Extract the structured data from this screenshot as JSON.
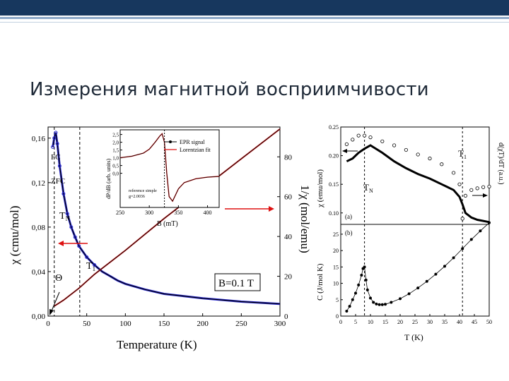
{
  "slide": {
    "title": "Измерения магнитной восприимчивости",
    "colors": {
      "header_bar": "#17375e",
      "accent_line": "#8ea9c8"
    }
  },
  "chart_data": [
    {
      "type": "line",
      "panel": "left-main",
      "xlabel": "Temperature (K)",
      "ylabel": "χ (cmu/mol)",
      "y2label": "1/χ (mol/emu)",
      "xlim": [
        0,
        300
      ],
      "ylim": [
        0,
        0.17
      ],
      "y2lim": [
        0,
        95
      ],
      "xticks": [
        "0",
        "50",
        "100",
        "150",
        "200",
        "250",
        "300"
      ],
      "yticks": [
        "0,00",
        "0,04",
        "0,08",
        "0,12",
        "0,16"
      ],
      "y2ticks": [
        "0",
        "20",
        "40",
        "60",
        "80"
      ],
      "annotations": [
        "FC",
        "ZFC",
        "T_N",
        "T_1",
        "Θ",
        "B=0.1 T"
      ],
      "field_label": "B=0.1 T",
      "label_FC": "FC",
      "label_ZFC": "ZFC",
      "label_TN": "T",
      "label_TN_sub": "N",
      "label_T1": "T",
      "label_T1_sub": "1",
      "label_theta": "Θ",
      "chi_series": {
        "x": [
          6,
          8,
          10,
          12,
          15,
          20,
          25,
          30,
          35,
          40,
          50,
          60,
          70,
          80,
          90,
          100,
          125,
          150,
          175,
          200,
          250,
          300
        ],
        "y": [
          0.152,
          0.16,
          0.165,
          0.155,
          0.135,
          0.11,
          0.092,
          0.08,
          0.071,
          0.063,
          0.053,
          0.046,
          0.04,
          0.036,
          0.032,
          0.029,
          0.024,
          0.02,
          0.018,
          0.016,
          0.013,
          0.011
        ]
      },
      "inv_chi_series": {
        "x": [
          8,
          20,
          40,
          60,
          80,
          100,
          150,
          200,
          250,
          300
        ],
        "y": [
          5,
          8,
          14,
          21,
          27,
          33,
          49,
          64,
          79,
          94
        ]
      },
      "guides_x": [
        8,
        41
      ]
    },
    {
      "type": "line",
      "panel": "left-inset",
      "legend": [
        "EPR signal",
        "Lorentzian fit"
      ],
      "xlabel": "B (mT)",
      "ylabel": "dP/dB (arb. units)",
      "xlim": [
        250,
        420
      ],
      "ylim": [
        -2.2,
        2.8
      ],
      "xticks": [
        "250",
        "300",
        "350",
        "400"
      ],
      "yticks": [
        "0,0",
        "0,5",
        "1,0",
        "1,5",
        "2,0",
        "2,5"
      ],
      "note_line1": "reference simple",
      "note_line2": "g=2.0036",
      "x": [
        250,
        270,
        290,
        300,
        310,
        318,
        322,
        326,
        330,
        334,
        340,
        350,
        360,
        380,
        400,
        420
      ],
      "y": [
        1.0,
        1.1,
        1.3,
        1.55,
        2.0,
        2.4,
        2.55,
        2.0,
        0.0,
        -1.5,
        -1.8,
        -1.0,
        -0.6,
        -0.35,
        -0.25,
        -0.2
      ]
    },
    {
      "type": "scatter",
      "panel": "right-a",
      "panel_label": "(a)",
      "ylabel": "χ (emu/mol)",
      "y2label": "d(χT)/dT (a.u.)",
      "xlim": [
        0,
        50
      ],
      "ylim": [
        0.08,
        0.25
      ],
      "yticks": [
        "0.10",
        "0.15",
        "0.20",
        "0.25"
      ],
      "label_T1": "T",
      "label_T1_sub": "1",
      "label_TN": "T",
      "label_TN_sub": "N",
      "chi_x": [
        2,
        4,
        6,
        8,
        10,
        14,
        18,
        22,
        26,
        30,
        34,
        38,
        40,
        41,
        42,
        44,
        46,
        48,
        50
      ],
      "chi_y": [
        0.19,
        0.195,
        0.205,
        0.212,
        0.218,
        0.205,
        0.19,
        0.178,
        0.168,
        0.16,
        0.15,
        0.14,
        0.128,
        0.115,
        0.1,
        0.092,
        0.088,
        0.086,
        0.084
      ],
      "deriv_x": [
        2,
        4,
        6,
        8,
        10,
        14,
        18,
        22,
        26,
        30,
        34,
        38,
        40,
        41,
        42,
        44,
        46,
        48,
        50
      ],
      "deriv_y": [
        0.22,
        0.228,
        0.235,
        0.235,
        0.232,
        0.225,
        0.218,
        0.21,
        0.202,
        0.195,
        0.185,
        0.17,
        0.15,
        0.09,
        0.13,
        0.14,
        0.143,
        0.145,
        0.146
      ],
      "guides_x": [
        8,
        41
      ]
    },
    {
      "type": "scatter",
      "panel": "right-b",
      "panel_label": "(b)",
      "xlabel": "T (K)",
      "ylabel": "C (J/mol K)",
      "xlim": [
        0,
        50
      ],
      "ylim": [
        0,
        28
      ],
      "xticks": [
        "0",
        "5",
        "10",
        "15",
        "20",
        "25",
        "30",
        "35",
        "40",
        "45",
        "50"
      ],
      "yticks": [
        "0",
        "5",
        "10",
        "15",
        "20",
        "25"
      ],
      "x": [
        2,
        3,
        4,
        5,
        6,
        7,
        7.5,
        8,
        8.5,
        9,
        10,
        11,
        12,
        13,
        14,
        15,
        17,
        20,
        23,
        26,
        29,
        32,
        35,
        38,
        41,
        44,
        47,
        50
      ],
      "y": [
        1.5,
        3,
        5,
        7,
        9.5,
        12.5,
        14.5,
        15,
        11,
        8,
        5.5,
        4.2,
        3.7,
        3.5,
        3.5,
        3.6,
        4.2,
        5.3,
        6.8,
        8.6,
        10.6,
        12.8,
        15.2,
        17.8,
        20.6,
        23.4,
        26,
        28.5
      ],
      "guides_x": [
        8,
        41
      ]
    }
  ]
}
